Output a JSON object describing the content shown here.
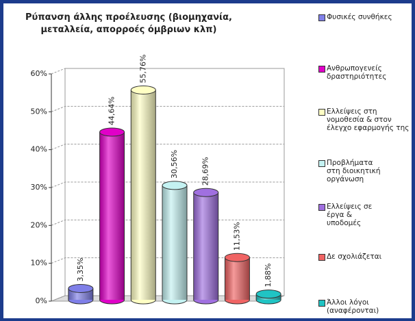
{
  "chart_data": {
    "type": "bar",
    "title": "Ρύπανση άλλης προέλευσης (βιομηχανία, μεταλλεία, απορροές όμβριων κλπ)",
    "categories": [
      "Φυσικές συνθήκες",
      "Ανθρωπογενείς δραστηριότητες",
      "Ελλείψεις στη νομοθεσία & στον έλεγχο εφαρμογής της",
      "Προβλήματα στη διοικητική οργάνωση",
      "Ελλείψεις σε έργα & υποδομές",
      "Δε σχολιάζεται",
      "Άλλοι λόγοι (αναφέρονται)"
    ],
    "values": [
      3.35,
      44.64,
      55.76,
      30.56,
      28.69,
      11.53,
      1.88
    ],
    "value_labels": [
      "3,35%",
      "44,64%",
      "55,76%",
      "30,56%",
      "28,69%",
      "11,53%",
      "1,88%"
    ],
    "colors": [
      "#7f7fe8",
      "#e000c8",
      "#ffffc4",
      "#c4f2f2",
      "#a070e0",
      "#f06464",
      "#20c4c4"
    ],
    "ylim": [
      0,
      60
    ],
    "yticks": [
      {
        "value": 0,
        "label": "0%"
      },
      {
        "value": 10,
        "label": "10%"
      },
      {
        "value": 20,
        "label": "20%"
      },
      {
        "value": 30,
        "label": "30%"
      },
      {
        "value": 40,
        "label": "40%"
      },
      {
        "value": 50,
        "label": "50%"
      },
      {
        "value": 60,
        "label": "60%"
      }
    ],
    "grid": true
  }
}
